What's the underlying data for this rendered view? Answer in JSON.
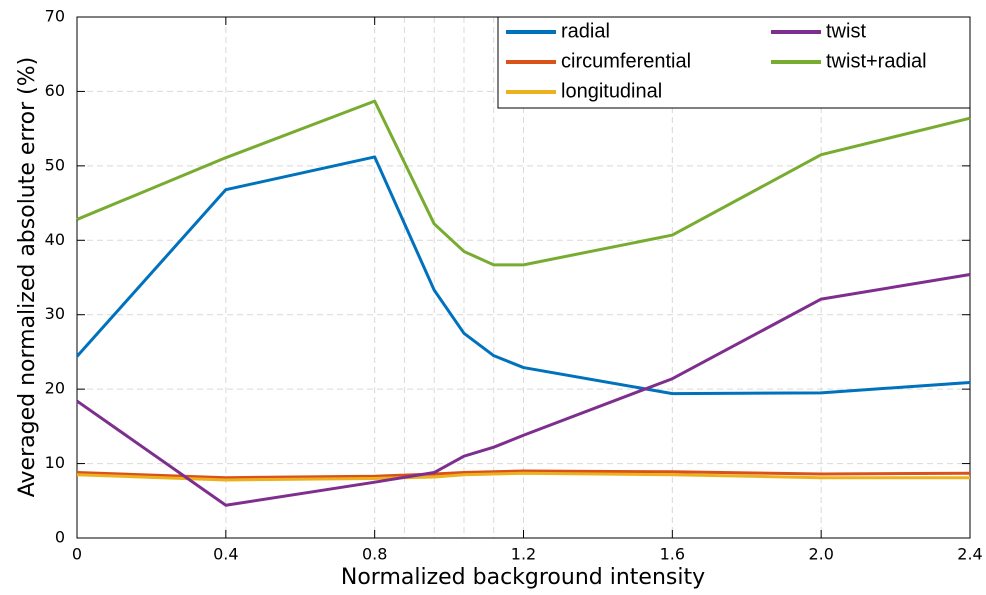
{
  "chart_data": {
    "type": "line",
    "xlabel": "Normalized background intensity",
    "ylabel": "Averaged normalized absolute error (%)",
    "x": [
      0,
      0.4,
      0.8,
      0.96,
      1.04,
      1.12,
      1.2,
      1.6,
      2.0,
      2.4
    ],
    "series": [
      {
        "name": "radial",
        "color": "#0072BD",
        "values": [
          24.4,
          46.8,
          51.2,
          33.3,
          27.5,
          24.5,
          22.9,
          19.4,
          19.5,
          20.9
        ]
      },
      {
        "name": "circumferential",
        "color": "#D95319",
        "values": [
          8.8,
          8.1,
          8.3,
          8.6,
          8.8,
          8.9,
          9.0,
          8.9,
          8.6,
          8.7
        ]
      },
      {
        "name": "longitudinal",
        "color": "#EDB120",
        "values": [
          8.5,
          7.8,
          8.0,
          8.2,
          8.5,
          8.6,
          8.7,
          8.5,
          8.1,
          8.1
        ]
      },
      {
        "name": "twist",
        "color": "#7E2F8E",
        "values": [
          18.4,
          4.4,
          7.5,
          8.8,
          11.0,
          12.2,
          13.8,
          21.4,
          32.1,
          35.4
        ]
      },
      {
        "name": "twist+radial",
        "color": "#77AC30",
        "values": [
          42.8,
          51.1,
          58.7,
          42.2,
          38.5,
          36.7,
          36.7,
          40.7,
          51.5,
          56.4
        ]
      }
    ],
    "xlim": [
      0,
      2.4
    ],
    "ylim": [
      0,
      70
    ],
    "xticks": [
      0,
      0.4,
      0.8,
      1.2,
      1.6,
      {
        "value": 2,
        "label": "2.0"
      },
      2.4
    ],
    "yticks": [
      0,
      10,
      20,
      30,
      40,
      50,
      60,
      70
    ],
    "x_minor_grid": [
      0.88,
      0.96,
      1.04,
      1.12
    ],
    "grid": true,
    "legend": "top-right"
  }
}
